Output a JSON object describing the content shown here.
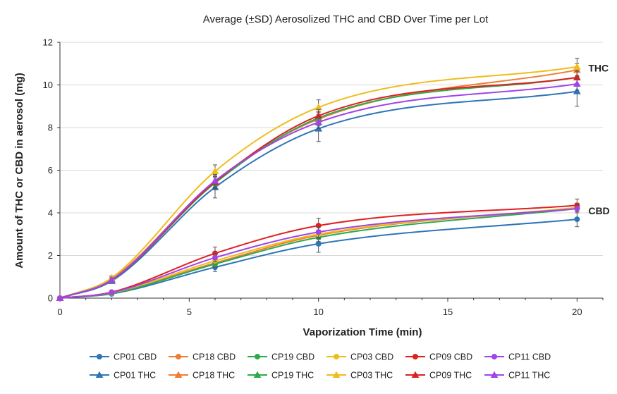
{
  "chart_data": {
    "type": "line",
    "title": "Average (±SD) Aerosolized THC and CBD Over Time per Lot",
    "xlabel": "Vaporization Time (min)",
    "ylabel": "Amount of THC or CBD in aerosol (mg)",
    "xlim": [
      0,
      21
    ],
    "ylim": [
      0,
      12
    ],
    "xticks": [
      0,
      5,
      10,
      15,
      20
    ],
    "yticks": [
      0,
      2,
      4,
      6,
      8,
      10,
      12
    ],
    "grid": "horizontal",
    "legend_position": "bottom",
    "group_labels": [
      {
        "text": "THC",
        "x": 20,
        "y": 10.8
      },
      {
        "text": "CBD",
        "x": 20,
        "y": 4.1
      }
    ],
    "x": [
      0,
      2,
      6,
      10,
      20
    ],
    "series": [
      {
        "name": "CP01 CBD",
        "color": "#2E75B6",
        "marker": "circle",
        "values": [
          0,
          0.2,
          1.45,
          2.55,
          3.7
        ],
        "error": [
          0,
          0.05,
          0.2,
          0.4,
          0.35
        ]
      },
      {
        "name": "CP18 CBD",
        "color": "#ED7D31",
        "marker": "circle",
        "values": [
          0,
          0.25,
          1.65,
          2.95,
          4.25
        ],
        "error": [
          0,
          0.05,
          0.15,
          0.2,
          0.2
        ]
      },
      {
        "name": "CP19 CBD",
        "color": "#2EAA4E",
        "marker": "circle",
        "values": [
          0,
          0.22,
          1.6,
          2.85,
          4.2
        ],
        "error": [
          0,
          0.05,
          0.15,
          0.2,
          0.2
        ]
      },
      {
        "name": "CP03 CBD",
        "color": "#F0BC1A",
        "marker": "circle",
        "values": [
          0,
          0.25,
          1.75,
          3.0,
          4.25
        ],
        "error": [
          0,
          0.05,
          0.15,
          0.2,
          0.2
        ]
      },
      {
        "name": "CP09 CBD",
        "color": "#E02020",
        "marker": "circle",
        "values": [
          0,
          0.28,
          2.1,
          3.4,
          4.35
        ],
        "error": [
          0,
          0.05,
          0.3,
          0.35,
          0.3
        ]
      },
      {
        "name": "CP11 CBD",
        "color": "#A044E8",
        "marker": "circle",
        "values": [
          0,
          0.26,
          1.9,
          3.1,
          4.2
        ],
        "error": [
          0,
          0.05,
          0.2,
          0.25,
          0.2
        ]
      },
      {
        "name": "CP01 THC",
        "color": "#2E75B6",
        "marker": "triangle",
        "values": [
          0,
          0.8,
          5.2,
          7.95,
          9.7
        ],
        "error": [
          0,
          0.1,
          0.5,
          0.6,
          0.7
        ]
      },
      {
        "name": "CP18 THC",
        "color": "#ED7D31",
        "marker": "triangle",
        "values": [
          0,
          0.9,
          5.5,
          8.4,
          10.7
        ],
        "error": [
          0,
          0.1,
          0.3,
          0.3,
          0.3
        ]
      },
      {
        "name": "CP19 THC",
        "color": "#2EAA4E",
        "marker": "triangle",
        "values": [
          0,
          0.85,
          5.4,
          8.45,
          10.35
        ],
        "error": [
          0,
          0.1,
          0.3,
          0.3,
          0.3
        ]
      },
      {
        "name": "CP03 THC",
        "color": "#F0BC1A",
        "marker": "triangle",
        "values": [
          0,
          0.95,
          5.95,
          8.95,
          10.85
        ],
        "error": [
          0,
          0.1,
          0.3,
          0.35,
          0.4
        ]
      },
      {
        "name": "CP09 THC",
        "color": "#E02020",
        "marker": "triangle",
        "values": [
          0,
          0.85,
          5.45,
          8.55,
          10.35
        ],
        "error": [
          0,
          0.1,
          0.3,
          0.3,
          0.3
        ]
      },
      {
        "name": "CP11 THC",
        "color": "#A044E8",
        "marker": "triangle",
        "values": [
          0,
          0.85,
          5.5,
          8.25,
          10.05
        ],
        "error": [
          0,
          0.1,
          0.3,
          0.3,
          0.3
        ]
      }
    ]
  }
}
